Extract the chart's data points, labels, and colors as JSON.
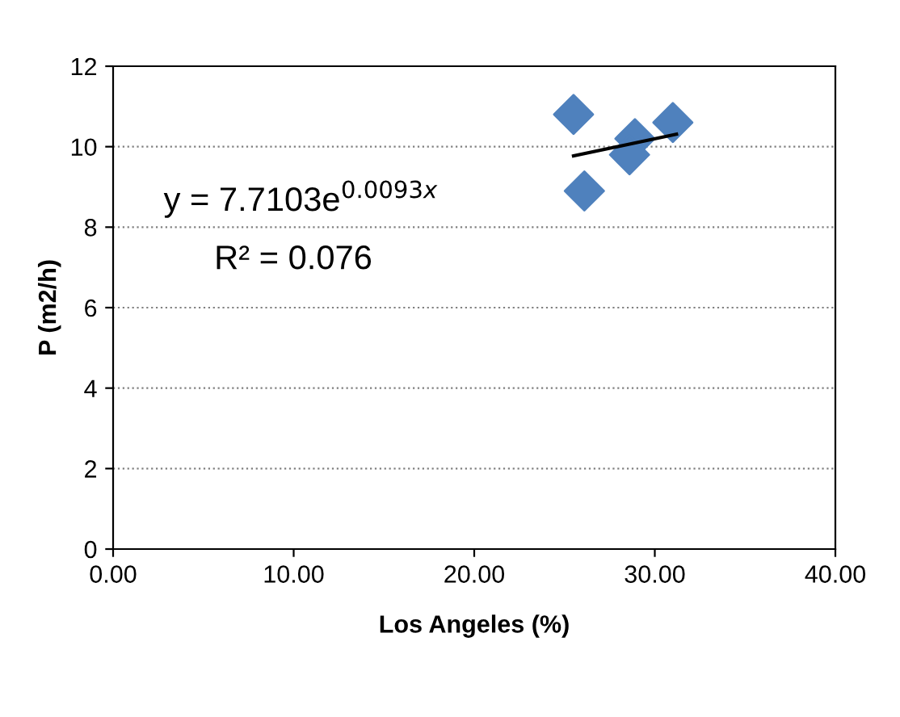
{
  "chart_data": {
    "type": "scatter",
    "xlabel": "Los Angeles (%)",
    "ylabel": "P (m2/h)",
    "xlim": [
      0,
      40
    ],
    "xticks": [
      {
        "value": 0,
        "label": "0.00"
      },
      {
        "value": 10,
        "label": "10.00"
      },
      {
        "value": 20,
        "label": "20.00"
      },
      {
        "value": 30,
        "label": "30.00"
      },
      {
        "value": 40,
        "label": "40.00"
      }
    ],
    "ylim": [
      0,
      12
    ],
    "yticks": [
      0,
      2,
      4,
      6,
      8,
      10,
      12
    ],
    "grid": "y",
    "series": [
      {
        "marker": "diamond",
        "color": "#4f81bd",
        "x": [
          25.5,
          26.1,
          28.9,
          28.6,
          31.0
        ],
        "values": [
          10.8,
          8.9,
          10.2,
          9.8,
          10.6
        ]
      },
      {
        "type": "line",
        "color": "#000000",
        "x": [
          25.5,
          31.2
        ],
        "values": [
          9.77,
          10.31
        ]
      }
    ],
    "annotations": [
      "y = 7.7103e$^{0.0093x}$",
      "R² = 0.076"
    ]
  }
}
